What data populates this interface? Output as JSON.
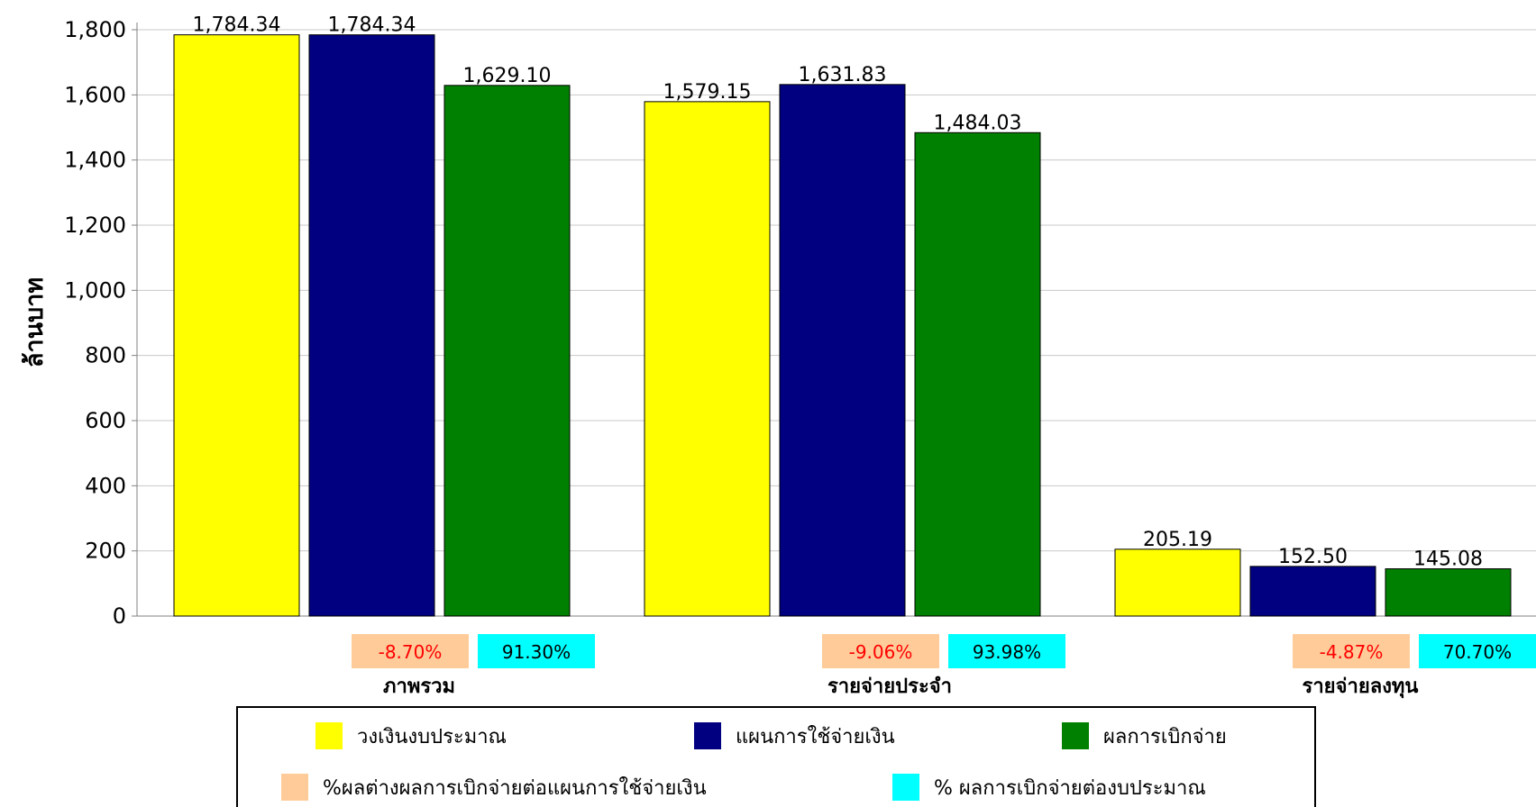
{
  "chart_data": {
    "type": "bar",
    "ylabel": "ล้านบาท",
    "ylim": [
      0,
      1800
    ],
    "yticks": [
      0,
      200,
      400,
      600,
      800,
      1000,
      1200,
      1400,
      1600,
      1800
    ],
    "grid": true,
    "categories": [
      "ภาพรวม",
      "รายจ่ายประจำ",
      "รายจ่ายลงทุน"
    ],
    "series": [
      {
        "name": "วงเงินงบประมาณ",
        "color": "#ffff00",
        "values": [
          1784.34,
          1579.15,
          205.19
        ]
      },
      {
        "name": "แผนการใช้จ่ายเงิน",
        "color": "#000080",
        "values": [
          1784.34,
          1631.83,
          152.5
        ]
      },
      {
        "name": "ผลการเบิกจ่าย",
        "color": "#008000",
        "values": [
          1629.1,
          1484.03,
          145.08
        ]
      }
    ],
    "indicators": [
      {
        "name": "%ผลต่างผลการเบิกจ่ายต่อแผนการใช้จ่ายเงิน",
        "color": "#ffcc99",
        "text_color": "#ff0000",
        "values": [
          "-8.70%",
          "-9.06%",
          "-4.87%"
        ]
      },
      {
        "name": "% ผลการเบิกจ่ายต่องบประมาณ",
        "color": "#00ffff",
        "text_color": "#000000",
        "values": [
          "91.30%",
          "93.98%",
          "70.70%"
        ]
      }
    ],
    "legend_position": "bottom"
  }
}
